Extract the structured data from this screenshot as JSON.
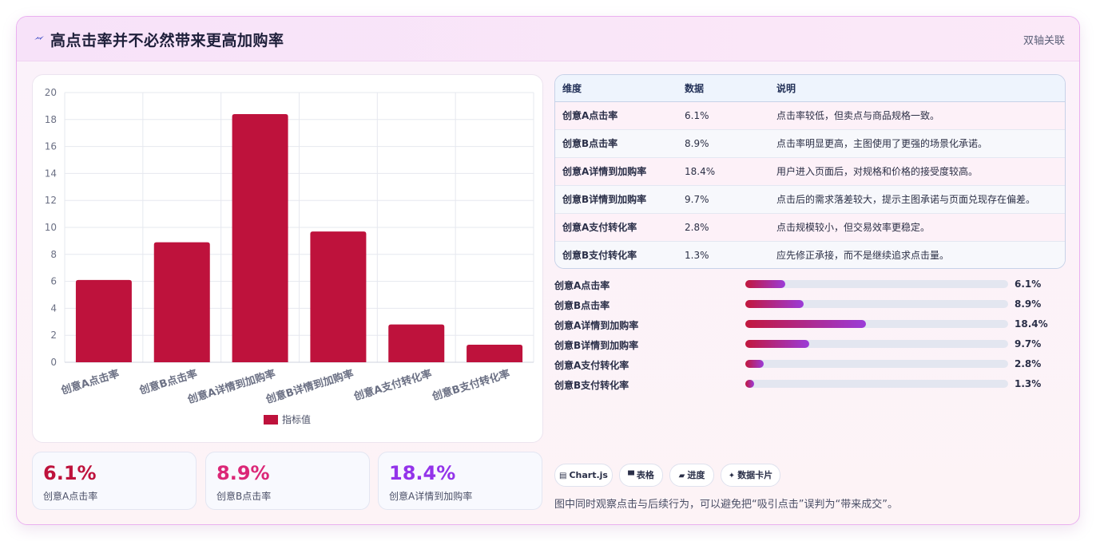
{
  "header": {
    "title": "高点击率并不必然带来更高加购率",
    "title_icon": "lightning-icon",
    "badge": "双轴关联"
  },
  "chart_data": {
    "type": "bar",
    "categories": [
      "创意A点击率",
      "创意B点击率",
      "创意A详情到加购率",
      "创意B详情到加购率",
      "创意A支付转化率",
      "创意B支付转化率"
    ],
    "series": [
      {
        "name": "指标值",
        "values": [
          6.1,
          8.9,
          18.4,
          9.7,
          2.8,
          1.3
        ],
        "color": "#be123c"
      }
    ],
    "ylim": [
      0,
      20
    ],
    "yticks": [
      0,
      2,
      4,
      6,
      8,
      10,
      12,
      14,
      16,
      18,
      20
    ],
    "grid": true,
    "legend": "bottom"
  },
  "kpis": [
    {
      "value": "6.1%",
      "label": "创意A点击率",
      "color": "#be123c"
    },
    {
      "value": "8.9%",
      "label": "创意B点击率",
      "color": "#db2777"
    },
    {
      "value": "18.4%",
      "label": "创意A详情到加购率",
      "color": "#9333ea"
    }
  ],
  "table": {
    "headers": [
      "维度",
      "数据",
      "说明"
    ],
    "rows": [
      [
        "创意A点击率",
        "6.1%",
        "点击率较低，但卖点与商品规格一致。"
      ],
      [
        "创意B点击率",
        "8.9%",
        "点击率明显更高，主图使用了更强的场景化承诺。"
      ],
      [
        "创意A详情到加购率",
        "18.4%",
        "用户进入页面后，对规格和价格的接受度较高。"
      ],
      [
        "创意B详情到加购率",
        "9.7%",
        "点击后的需求落差较大，提示主图承诺与页面兑现存在偏差。"
      ],
      [
        "创意A支付转化率",
        "2.8%",
        "点击规模较小，但交易效率更稳定。"
      ],
      [
        "创意B支付转化率",
        "1.3%",
        "应先修正承接，而不是继续追求点击量。"
      ]
    ]
  },
  "progress": {
    "max": 40,
    "items": [
      {
        "label": "创意A点击率",
        "value": 6.1,
        "display": "6.1%"
      },
      {
        "label": "创意B点击率",
        "value": 8.9,
        "display": "8.9%"
      },
      {
        "label": "创意A详情到加购率",
        "value": 18.4,
        "display": "18.4%"
      },
      {
        "label": "创意B详情到加购率",
        "value": 9.7,
        "display": "9.7%"
      },
      {
        "label": "创意A支付转化率",
        "value": 2.8,
        "display": "2.8%"
      },
      {
        "label": "创意B支付转化率",
        "value": 1.3,
        "display": "1.3%"
      }
    ]
  },
  "chips": [
    {
      "icon": "▤",
      "label": "Chart.js"
    },
    {
      "icon": "▀",
      "label": "表格"
    },
    {
      "icon": "▰",
      "label": "进度"
    },
    {
      "icon": "✦",
      "label": "数据卡片"
    }
  ],
  "footnote": "图中同时观察点击与后续行为，可以避免把“吸引点击”误判为“带来成交”。"
}
